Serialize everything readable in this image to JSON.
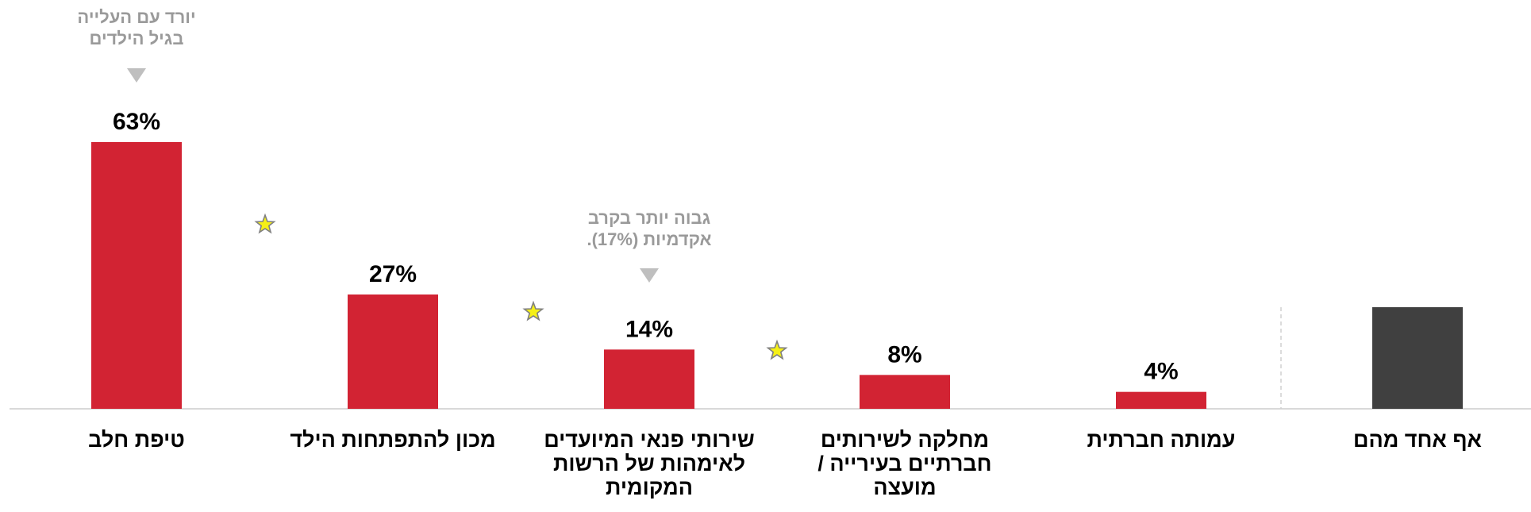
{
  "colors": {
    "bar_main": "#d22333",
    "bar_reference": "#404040",
    "baseline": "#d9d9d9",
    "divider": "#d0d0d0",
    "annotation": "#9a9a9a",
    "star_fill": "#f5f016",
    "star_stroke": "#808080"
  },
  "chart_data": {
    "type": "bar",
    "direction": "rtl",
    "ylim": [
      0,
      63
    ],
    "categories": [
      "טיפת חלב",
      "מכון להתפתחות הילד",
      "שירותי פנאי המיועדים לאימהות של הרשות המקומית",
      "מחלקה לשירותים חברתיים בעירייה / מועצה",
      "עמותה חברתית",
      "אף אחד מהם"
    ],
    "category_lines": [
      [
        "טיפת חלב"
      ],
      [
        "מכון להתפתחות הילד"
      ],
      [
        "שירותי פנאי המיועדים",
        "לאימהות של הרשות",
        "המקומית"
      ],
      [
        "מחלקה לשירותים",
        "חברתיים בעירייה /",
        "מועצה"
      ],
      [
        "עמותה חברתית"
      ],
      [
        "אף אחד מהם"
      ]
    ],
    "values": [
      63,
      27,
      14,
      8,
      4,
      24
    ],
    "value_labels": [
      "63%",
      "27%",
      "14%",
      "8%",
      "4%",
      ""
    ],
    "reference_index": 5,
    "annotations": [
      {
        "bar_index": 0,
        "lines": [
          "יורד עם העלייה",
          "בגיל הילדים"
        ],
        "marker": "down-arrow"
      },
      {
        "bar_index": 2,
        "lines": [
          "גבוה יותר בקרב",
          "אקדמיות (17%)."
        ],
        "marker": "down-arrow"
      }
    ],
    "significance_stars_between": [
      0,
      1,
      2
    ]
  }
}
